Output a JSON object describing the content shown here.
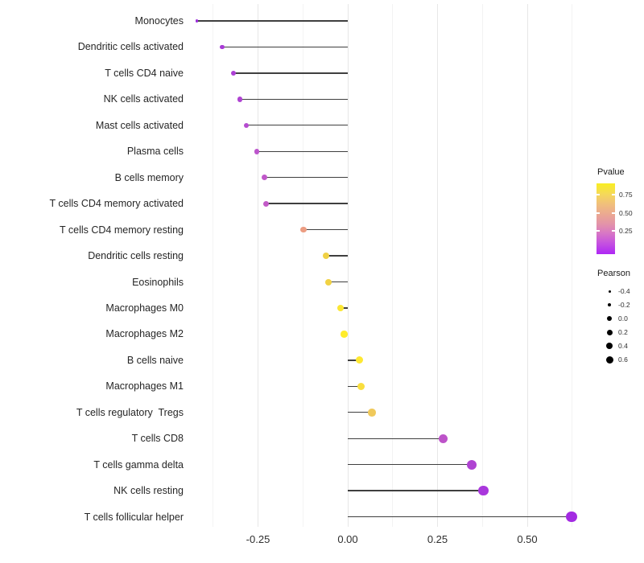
{
  "chart_data": {
    "type": "scatter",
    "variant": "horizontal lollipop (segment + point)",
    "title": "",
    "xlabel": "",
    "ylabel": "",
    "points": [
      {
        "label": "Monocytes",
        "pearson": -0.42,
        "color": "#9C2CDC",
        "size": 3.5
      },
      {
        "label": "Dendritic cells activated",
        "pearson": -0.35,
        "color": "#A83AD6",
        "size": 5.5
      },
      {
        "label": "T cells CD4 naive",
        "pearson": -0.318,
        "color": "#AC3FD4",
        "size": 6
      },
      {
        "label": "NK cells activated",
        "pearson": -0.3,
        "color": "#AF43D2",
        "size": 6.5
      },
      {
        "label": "Mast cells activated",
        "pearson": -0.283,
        "color": "#B54BD0",
        "size": 6.5
      },
      {
        "label": "Plasma cells",
        "pearson": -0.253,
        "color": "#BC55CC",
        "size": 6.5
      },
      {
        "label": "B cells memory",
        "pearson": -0.233,
        "color": "#C058C9",
        "size": 7
      },
      {
        "label": "T cells CD4 memory activated",
        "pearson": -0.227,
        "color": "#C25AC7",
        "size": 7
      },
      {
        "label": "T cells CD4 memory resting",
        "pearson": -0.123,
        "color": "#EC9D82",
        "size": 7.5
      },
      {
        "label": "Dendritic cells resting",
        "pearson": -0.061,
        "color": "#F0D145",
        "size": 8
      },
      {
        "label": "Eosinophils",
        "pearson": -0.054,
        "color": "#F1D243",
        "size": 8
      },
      {
        "label": "Macrophages M0",
        "pearson": -0.02,
        "color": "#FBE634",
        "size": 8.5
      },
      {
        "label": "Macrophages M2",
        "pearson": -0.01,
        "color": "#FFEC2B",
        "size": 8.5
      },
      {
        "label": "B cells naive",
        "pearson": 0.033,
        "color": "#FEE832",
        "size": 9
      },
      {
        "label": "Macrophages M1",
        "pearson": 0.037,
        "color": "#F9DE3E",
        "size": 9.5
      },
      {
        "label": "T cells regulatory  Tregs",
        "pearson": 0.067,
        "color": "#F0C95B",
        "size": 9.5
      },
      {
        "label": "T cells CD8",
        "pearson": 0.266,
        "color": "#BD53C9",
        "size": 11
      },
      {
        "label": "T cells gamma delta",
        "pearson": 0.345,
        "color": "#AF43D2",
        "size": 12
      },
      {
        "label": "NK cells resting",
        "pearson": 0.378,
        "color": "#A937DC",
        "size": 12.5
      },
      {
        "label": "T cells follicular helper",
        "pearson": 0.623,
        "color": "#A32BE2",
        "size": 13.5
      }
    ],
    "x_axis": {
      "tick_values": [
        -0.25,
        0,
        0.25,
        0.5
      ],
      "tick_labels": [
        "-0.25",
        "0.00",
        "0.25",
        "0.50"
      ],
      "minor_gridline_values": [
        -0.375,
        -0.125,
        0.125,
        0.375,
        0.625
      ],
      "range": [
        -0.44,
        0.65
      ],
      "grid": "vertical gridlines only, no axis lines"
    },
    "legend_pvalue": {
      "title": "Pvalue",
      "tick_labels": [
        "0.75",
        "0.50",
        "0.25"
      ],
      "gradient_top_to_bottom": [
        {
          "color": "#F9EE21",
          "pos": 0
        },
        {
          "color": "#F5D95A",
          "pos": 0.15
        },
        {
          "color": "#F0BE7D",
          "pos": 0.3
        },
        {
          "color": "#EAA694",
          "pos": 0.45
        },
        {
          "color": "#E394A8",
          "pos": 0.57
        },
        {
          "color": "#D878C4",
          "pos": 0.7
        },
        {
          "color": "#C653DF",
          "pos": 0.84
        },
        {
          "color": "#AE27F5",
          "pos": 1
        }
      ]
    },
    "legend_pearson": {
      "title": "Pearson",
      "dot_color": "#000000",
      "entries": [
        {
          "label": "-0.4",
          "dot_size": 3
        },
        {
          "label": "-0.2",
          "dot_size": 4.5
        },
        {
          "label": "0.0",
          "dot_size": 6
        },
        {
          "label": "0.2",
          "dot_size": 7
        },
        {
          "label": "0.4",
          "dot_size": 8
        },
        {
          "label": "0.6",
          "dot_size": 9
        }
      ]
    },
    "style_colors": {
      "stem": "#3F3F3F",
      "grid_major": "#E7E7E7",
      "grid_minor": "#F3F3F3",
      "axis_text": "#2E2E2E",
      "background": "#FFFFFF"
    }
  }
}
